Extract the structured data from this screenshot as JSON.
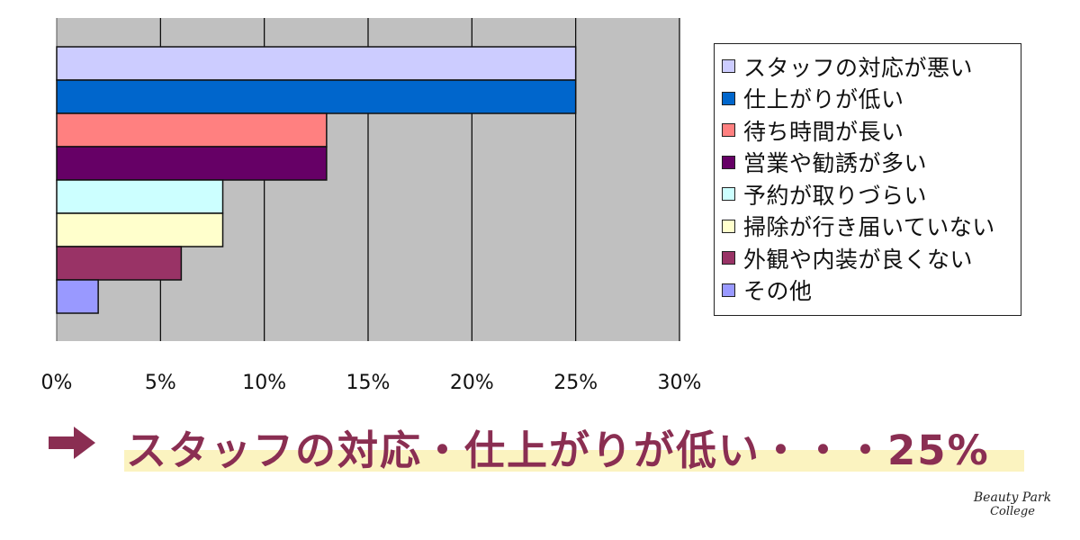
{
  "chart_data": {
    "type": "bar",
    "orientation": "horizontal",
    "xlim": [
      0,
      30
    ],
    "x_ticks": [
      "0%",
      "5%",
      "10%",
      "15%",
      "20%",
      "25%",
      "30%"
    ],
    "grid": true,
    "legend_position": "right",
    "series": [
      {
        "name": "スタッフの対応が悪い",
        "value": 25,
        "color": "#ccccff"
      },
      {
        "name": "仕上がりが低い",
        "value": 25,
        "color": "#0066cc"
      },
      {
        "name": "待ち時間が長い",
        "value": 13,
        "color": "#ff8080"
      },
      {
        "name": "営業や勧誘が多い",
        "value": 13,
        "color": "#660066"
      },
      {
        "name": "予約が取りづらい",
        "value": 8,
        "color": "#ccffff"
      },
      {
        "name": "掃除が行き届いていない",
        "value": 8,
        "color": "#ffffcc"
      },
      {
        "name": "外観や内装が良くない",
        "value": 6,
        "color": "#993366"
      },
      {
        "name": "その他",
        "value": 2,
        "color": "#9999ff"
      }
    ]
  },
  "conclusion": {
    "text": "スタッフの対応・仕上がりが低い・・・25%",
    "color": "#8a2e52",
    "highlight_color": "#fbf3c0"
  },
  "logo": {
    "line1": "Beauty Park",
    "line2": "College"
  }
}
